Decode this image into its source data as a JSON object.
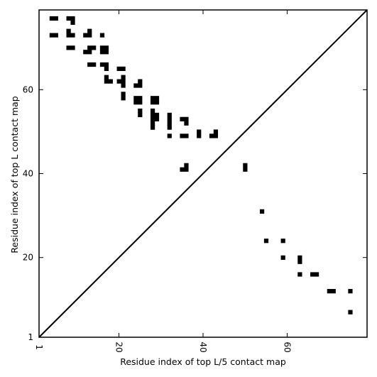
{
  "chart_data": {
    "type": "heatmap",
    "title": "",
    "xlabel": "Residue index of top L/5 contact map",
    "ylabel": "Residue index of top L contact map",
    "xlim": [
      1,
      79
    ],
    "ylim": [
      1,
      79
    ],
    "x_ticks": [
      {
        "value": 1,
        "label": "1"
      },
      {
        "value": 20,
        "label": "20"
      },
      {
        "value": 40,
        "label": "40"
      },
      {
        "value": 60,
        "label": "60"
      }
    ],
    "y_ticks": [
      {
        "value": 1,
        "label": "1"
      },
      {
        "value": 20,
        "label": "20"
      },
      {
        "value": 40,
        "label": "40"
      },
      {
        "value": 60,
        "label": "60"
      }
    ],
    "diagonal": true,
    "grid": false,
    "mark_color": "#000000",
    "upper_triangle_contacts": [
      [
        4,
        77
      ],
      [
        5,
        77
      ],
      [
        8,
        77
      ],
      [
        9,
        77
      ],
      [
        9,
        76
      ],
      [
        4,
        73
      ],
      [
        5,
        73
      ],
      [
        8,
        73
      ],
      [
        9,
        73
      ],
      [
        8,
        74
      ],
      [
        12,
        73
      ],
      [
        13,
        73
      ],
      [
        13,
        74
      ],
      [
        16,
        73
      ],
      [
        8,
        70
      ],
      [
        9,
        70
      ],
      [
        12,
        69
      ],
      [
        13,
        69
      ],
      [
        13,
        70
      ],
      [
        14,
        70
      ],
      [
        16,
        69
      ],
      [
        16,
        70
      ],
      [
        17,
        69
      ],
      [
        17,
        70
      ],
      [
        13,
        66
      ],
      [
        14,
        66
      ],
      [
        16,
        66
      ],
      [
        17,
        66
      ],
      [
        17,
        65
      ],
      [
        20,
        65
      ],
      [
        21,
        65
      ],
      [
        17,
        63
      ],
      [
        17,
        62
      ],
      [
        18,
        62
      ],
      [
        20,
        62
      ],
      [
        21,
        62
      ],
      [
        21,
        63
      ],
      [
        21,
        61
      ],
      [
        24,
        61
      ],
      [
        25,
        61
      ],
      [
        25,
        62
      ],
      [
        21,
        59
      ],
      [
        21,
        58
      ],
      [
        24,
        58
      ],
      [
        25,
        58
      ],
      [
        24,
        57
      ],
      [
        25,
        57
      ],
      [
        28,
        58
      ],
      [
        29,
        58
      ],
      [
        28,
        57
      ],
      [
        29,
        57
      ],
      [
        25,
        55
      ],
      [
        25,
        54
      ],
      [
        28,
        55
      ],
      [
        28,
        54
      ],
      [
        28,
        53
      ],
      [
        28,
        52
      ],
      [
        28,
        51
      ],
      [
        29,
        54
      ],
      [
        29,
        53
      ],
      [
        32,
        54
      ],
      [
        32,
        53
      ],
      [
        32,
        52
      ],
      [
        32,
        51
      ],
      [
        35,
        53
      ],
      [
        36,
        53
      ],
      [
        36,
        52
      ],
      [
        32,
        49
      ],
      [
        35,
        49
      ],
      [
        36,
        49
      ],
      [
        39,
        50
      ],
      [
        39,
        49
      ],
      [
        42,
        49
      ],
      [
        43,
        49
      ],
      [
        43,
        50
      ],
      [
        35,
        41
      ],
      [
        36,
        41
      ],
      [
        36,
        42
      ]
    ],
    "lower_triangle_contacts": [
      [
        50,
        42
      ],
      [
        50,
        41
      ],
      [
        54,
        31
      ],
      [
        55,
        24
      ],
      [
        59,
        24
      ],
      [
        59,
        20
      ],
      [
        63,
        20
      ],
      [
        63,
        19
      ],
      [
        63,
        16
      ],
      [
        66,
        16
      ],
      [
        67,
        16
      ],
      [
        70,
        12
      ],
      [
        71,
        12
      ],
      [
        75,
        12
      ],
      [
        75,
        7
      ]
    ]
  }
}
